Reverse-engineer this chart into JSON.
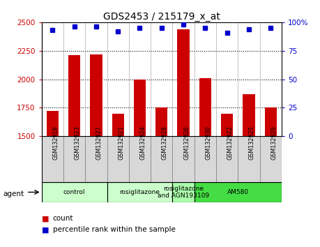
{
  "title": "GDS2453 / 215179_x_at",
  "samples": [
    "GSM132919",
    "GSM132923",
    "GSM132927",
    "GSM132921",
    "GSM132924",
    "GSM132928",
    "GSM132926",
    "GSM132930",
    "GSM132922",
    "GSM132925",
    "GSM132929"
  ],
  "counts": [
    1720,
    2210,
    2220,
    1700,
    1995,
    1755,
    2435,
    2010,
    1700,
    1870,
    1750
  ],
  "percentiles": [
    93,
    96,
    96,
    92,
    95,
    95,
    98,
    95,
    91,
    94,
    95
  ],
  "bar_color": "#cc0000",
  "dot_color": "#0000cc",
  "ylim_left": [
    1500,
    2500
  ],
  "ylim_right": [
    0,
    100
  ],
  "yticks_left": [
    1500,
    1750,
    2000,
    2250,
    2500
  ],
  "yticks_right": [
    0,
    25,
    50,
    75,
    100
  ],
  "groups": [
    {
      "label": "control",
      "start": 0,
      "end": 3,
      "color": "#ccffcc"
    },
    {
      "label": "rosiglitazone",
      "start": 3,
      "end": 6,
      "color": "#ccffcc"
    },
    {
      "label": "rosiglitazone\nand AGN193109",
      "start": 6,
      "end": 7,
      "color": "#aaffaa"
    },
    {
      "label": "AM580",
      "start": 7,
      "end": 11,
      "color": "#44dd44"
    }
  ],
  "agent_label": "agent",
  "legend_count_label": "count",
  "legend_percentile_label": "percentile rank within the sample",
  "bg_color": "#ffffff",
  "tick_color_left": "#cc0000",
  "tick_color_right": "#0000cc",
  "title_fontsize": 10,
  "tick_fontsize": 7.5,
  "sample_box_color": "#d8d8d8",
  "sample_box_edge": "#888888"
}
